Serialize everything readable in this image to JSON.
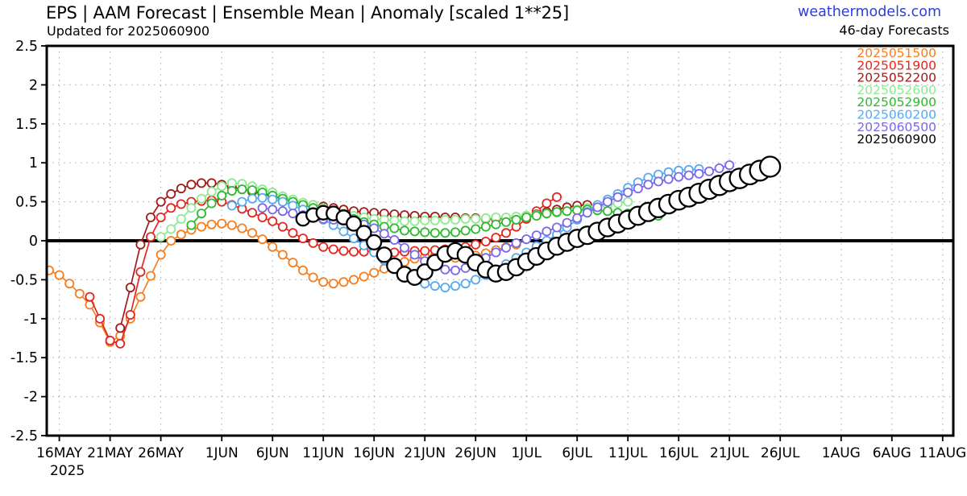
{
  "header": {
    "title": "EPS | AAM Forecast | Ensemble Mean | Anomaly [scaled 1**25]",
    "updated": "Updated for 2025060900",
    "site": "weathermodels.com",
    "site_color": "#2f3ddf",
    "forecast_label": "46-day Forecasts"
  },
  "chart_data": {
    "type": "line",
    "marker": "open-circle",
    "grid": "dotted",
    "zero_line": true,
    "legend_position": "upper-right",
    "ylim": [
      -2.5,
      2.5
    ],
    "y_ticks": [
      "2.5",
      "2",
      "1.5",
      "1",
      "0.5",
      "0",
      "-0.5",
      "-1",
      "-1.5",
      "-2",
      "-2.5"
    ],
    "y_tick_values": [
      2.5,
      2,
      1.5,
      1,
      0.5,
      0,
      -0.5,
      -1,
      -1.5,
      -2,
      -2.5
    ],
    "x_year_label": "2025",
    "x_ticks": [
      {
        "label": "16MAY",
        "day": 1
      },
      {
        "label": "21MAY",
        "day": 6
      },
      {
        "label": "26MAY",
        "day": 11
      },
      {
        "label": "1JUN",
        "day": 17
      },
      {
        "label": "6JUN",
        "day": 22
      },
      {
        "label": "11JUN",
        "day": 27
      },
      {
        "label": "16JUN",
        "day": 32
      },
      {
        "label": "21JUN",
        "day": 37
      },
      {
        "label": "26JUN",
        "day": 42
      },
      {
        "label": "1JUL",
        "day": 47
      },
      {
        "label": "6JUL",
        "day": 52
      },
      {
        "label": "11JUL",
        "day": 57
      },
      {
        "label": "16JUL",
        "day": 62
      },
      {
        "label": "21JUL",
        "day": 67
      },
      {
        "label": "26JUL",
        "day": 72
      },
      {
        "label": "1AUG",
        "day": 78
      },
      {
        "label": "6AUG",
        "day": 83
      },
      {
        "label": "11AUG",
        "day": 88
      }
    ],
    "series": [
      {
        "label": "2025051500",
        "color": "#f57e20",
        "start_day": 0,
        "values": [
          -0.38,
          -0.44,
          -0.55,
          -0.68,
          -0.82,
          -1.05,
          -1.3,
          -1.22,
          -1.0,
          -0.72,
          -0.45,
          -0.18,
          0.0,
          0.08,
          0.14,
          0.18,
          0.21,
          0.22,
          0.2,
          0.16,
          0.1,
          0.02,
          -0.08,
          -0.18,
          -0.28,
          -0.38,
          -0.47,
          -0.53,
          -0.55,
          -0.53,
          -0.5,
          -0.46,
          -0.41,
          -0.36,
          -0.31,
          -0.27,
          -0.23,
          -0.2,
          -0.19,
          -0.2,
          -0.22,
          -0.21,
          -0.19,
          -0.16,
          -0.12,
          -0.08,
          -0.05
        ]
      },
      {
        "label": "2025051900",
        "color": "#e3261f",
        "start_day": 4,
        "values": [
          -0.72,
          -1.0,
          -1.28,
          -1.32,
          -0.95,
          -0.4,
          0.05,
          0.3,
          0.42,
          0.47,
          0.5,
          0.51,
          0.52,
          0.5,
          0.46,
          0.41,
          0.36,
          0.3,
          0.25,
          0.18,
          0.1,
          0.03,
          -0.03,
          -0.08,
          -0.11,
          -0.13,
          -0.14,
          -0.14,
          -0.13,
          -0.14,
          -0.15,
          -0.14,
          -0.13,
          -0.13,
          -0.12,
          -0.11,
          -0.1,
          -0.08,
          -0.05,
          -0.01,
          0.04,
          0.1,
          0.18,
          0.28,
          0.38,
          0.48,
          0.56
        ]
      },
      {
        "label": "2025052200",
        "color": "#a01a18",
        "start_day": 7,
        "values": [
          -1.12,
          -0.6,
          -0.05,
          0.3,
          0.5,
          0.6,
          0.67,
          0.72,
          0.74,
          0.74,
          0.72,
          0.69,
          0.66,
          0.63,
          0.6,
          0.57,
          0.54,
          0.51,
          0.48,
          0.46,
          0.44,
          0.42,
          0.4,
          0.38,
          0.37,
          0.36,
          0.35,
          0.34,
          0.33,
          0.32,
          0.31,
          0.31,
          0.3,
          0.3,
          0.29,
          0.29,
          0.28,
          0.28,
          0.29,
          0.3,
          0.32,
          0.34,
          0.37,
          0.4,
          0.43,
          0.45,
          0.46
        ]
      },
      {
        "label": "2025052600",
        "color": "#8fe98f",
        "start_day": 11,
        "values": [
          0.05,
          0.15,
          0.28,
          0.42,
          0.54,
          0.63,
          0.7,
          0.74,
          0.73,
          0.7,
          0.66,
          0.62,
          0.57,
          0.53,
          0.49,
          0.46,
          0.42,
          0.38,
          0.35,
          0.32,
          0.3,
          0.28,
          0.27,
          0.26,
          0.25,
          0.25,
          0.26,
          0.26,
          0.27,
          0.27,
          0.28,
          0.28,
          0.29,
          0.3,
          0.3,
          0.31,
          0.32,
          0.33,
          0.35,
          0.36,
          0.38,
          0.4,
          0.42,
          0.44,
          0.46,
          0.48,
          0.5
        ]
      },
      {
        "label": "2025052900",
        "color": "#2eba2e",
        "start_day": 14,
        "values": [
          0.2,
          0.35,
          0.48,
          0.58,
          0.64,
          0.66,
          0.65,
          0.62,
          0.58,
          0.54,
          0.5,
          0.46,
          0.42,
          0.38,
          0.35,
          0.31,
          0.28,
          0.24,
          0.21,
          0.18,
          0.16,
          0.13,
          0.12,
          0.11,
          0.1,
          0.1,
          0.11,
          0.13,
          0.15,
          0.18,
          0.21,
          0.24,
          0.27,
          0.3,
          0.32,
          0.35,
          0.37,
          0.38,
          0.39,
          0.4,
          0.39,
          0.38,
          0.36,
          0.35,
          0.33,
          0.32,
          0.32
        ]
      },
      {
        "label": "2025060200",
        "color": "#57a9f0",
        "start_day": 18,
        "values": [
          0.45,
          0.5,
          0.54,
          0.55,
          0.53,
          0.5,
          0.45,
          0.4,
          0.33,
          0.27,
          0.2,
          0.12,
          0.03,
          -0.06,
          -0.15,
          -0.25,
          -0.35,
          -0.44,
          -0.5,
          -0.55,
          -0.58,
          -0.6,
          -0.58,
          -0.55,
          -0.5,
          -0.44,
          -0.37,
          -0.3,
          -0.22,
          -0.15,
          -0.07,
          0.0,
          0.08,
          0.17,
          0.27,
          0.37,
          0.46,
          0.53,
          0.6,
          0.68,
          0.75,
          0.81,
          0.85,
          0.88,
          0.9,
          0.91,
          0.92
        ]
      },
      {
        "label": "2025060500",
        "color": "#7b68e8",
        "start_day": 21,
        "values": [
          0.42,
          0.4,
          0.38,
          0.35,
          0.33,
          0.3,
          0.28,
          0.27,
          0.26,
          0.24,
          0.21,
          0.16,
          0.09,
          0.01,
          -0.09,
          -0.18,
          -0.26,
          -0.33,
          -0.37,
          -0.38,
          -0.35,
          -0.29,
          -0.22,
          -0.15,
          -0.09,
          -0.03,
          0.02,
          0.07,
          0.12,
          0.17,
          0.23,
          0.29,
          0.36,
          0.43,
          0.5,
          0.56,
          0.62,
          0.67,
          0.72,
          0.76,
          0.79,
          0.82,
          0.84,
          0.86,
          0.89,
          0.93,
          0.97
        ]
      },
      {
        "label": "2025060900",
        "color": "#000000",
        "start_day": 25,
        "values": [
          0.28,
          0.33,
          0.36,
          0.35,
          0.3,
          0.22,
          0.1,
          -0.02,
          -0.18,
          -0.32,
          -0.43,
          -0.47,
          -0.4,
          -0.28,
          -0.17,
          -0.13,
          -0.18,
          -0.28,
          -0.37,
          -0.42,
          -0.4,
          -0.34,
          -0.27,
          -0.2,
          -0.13,
          -0.07,
          -0.02,
          0.03,
          0.07,
          0.12,
          0.17,
          0.22,
          0.27,
          0.32,
          0.37,
          0.42,
          0.47,
          0.52,
          0.56,
          0.61,
          0.66,
          0.71,
          0.76,
          0.8,
          0.85,
          0.9,
          0.95
        ]
      }
    ]
  }
}
